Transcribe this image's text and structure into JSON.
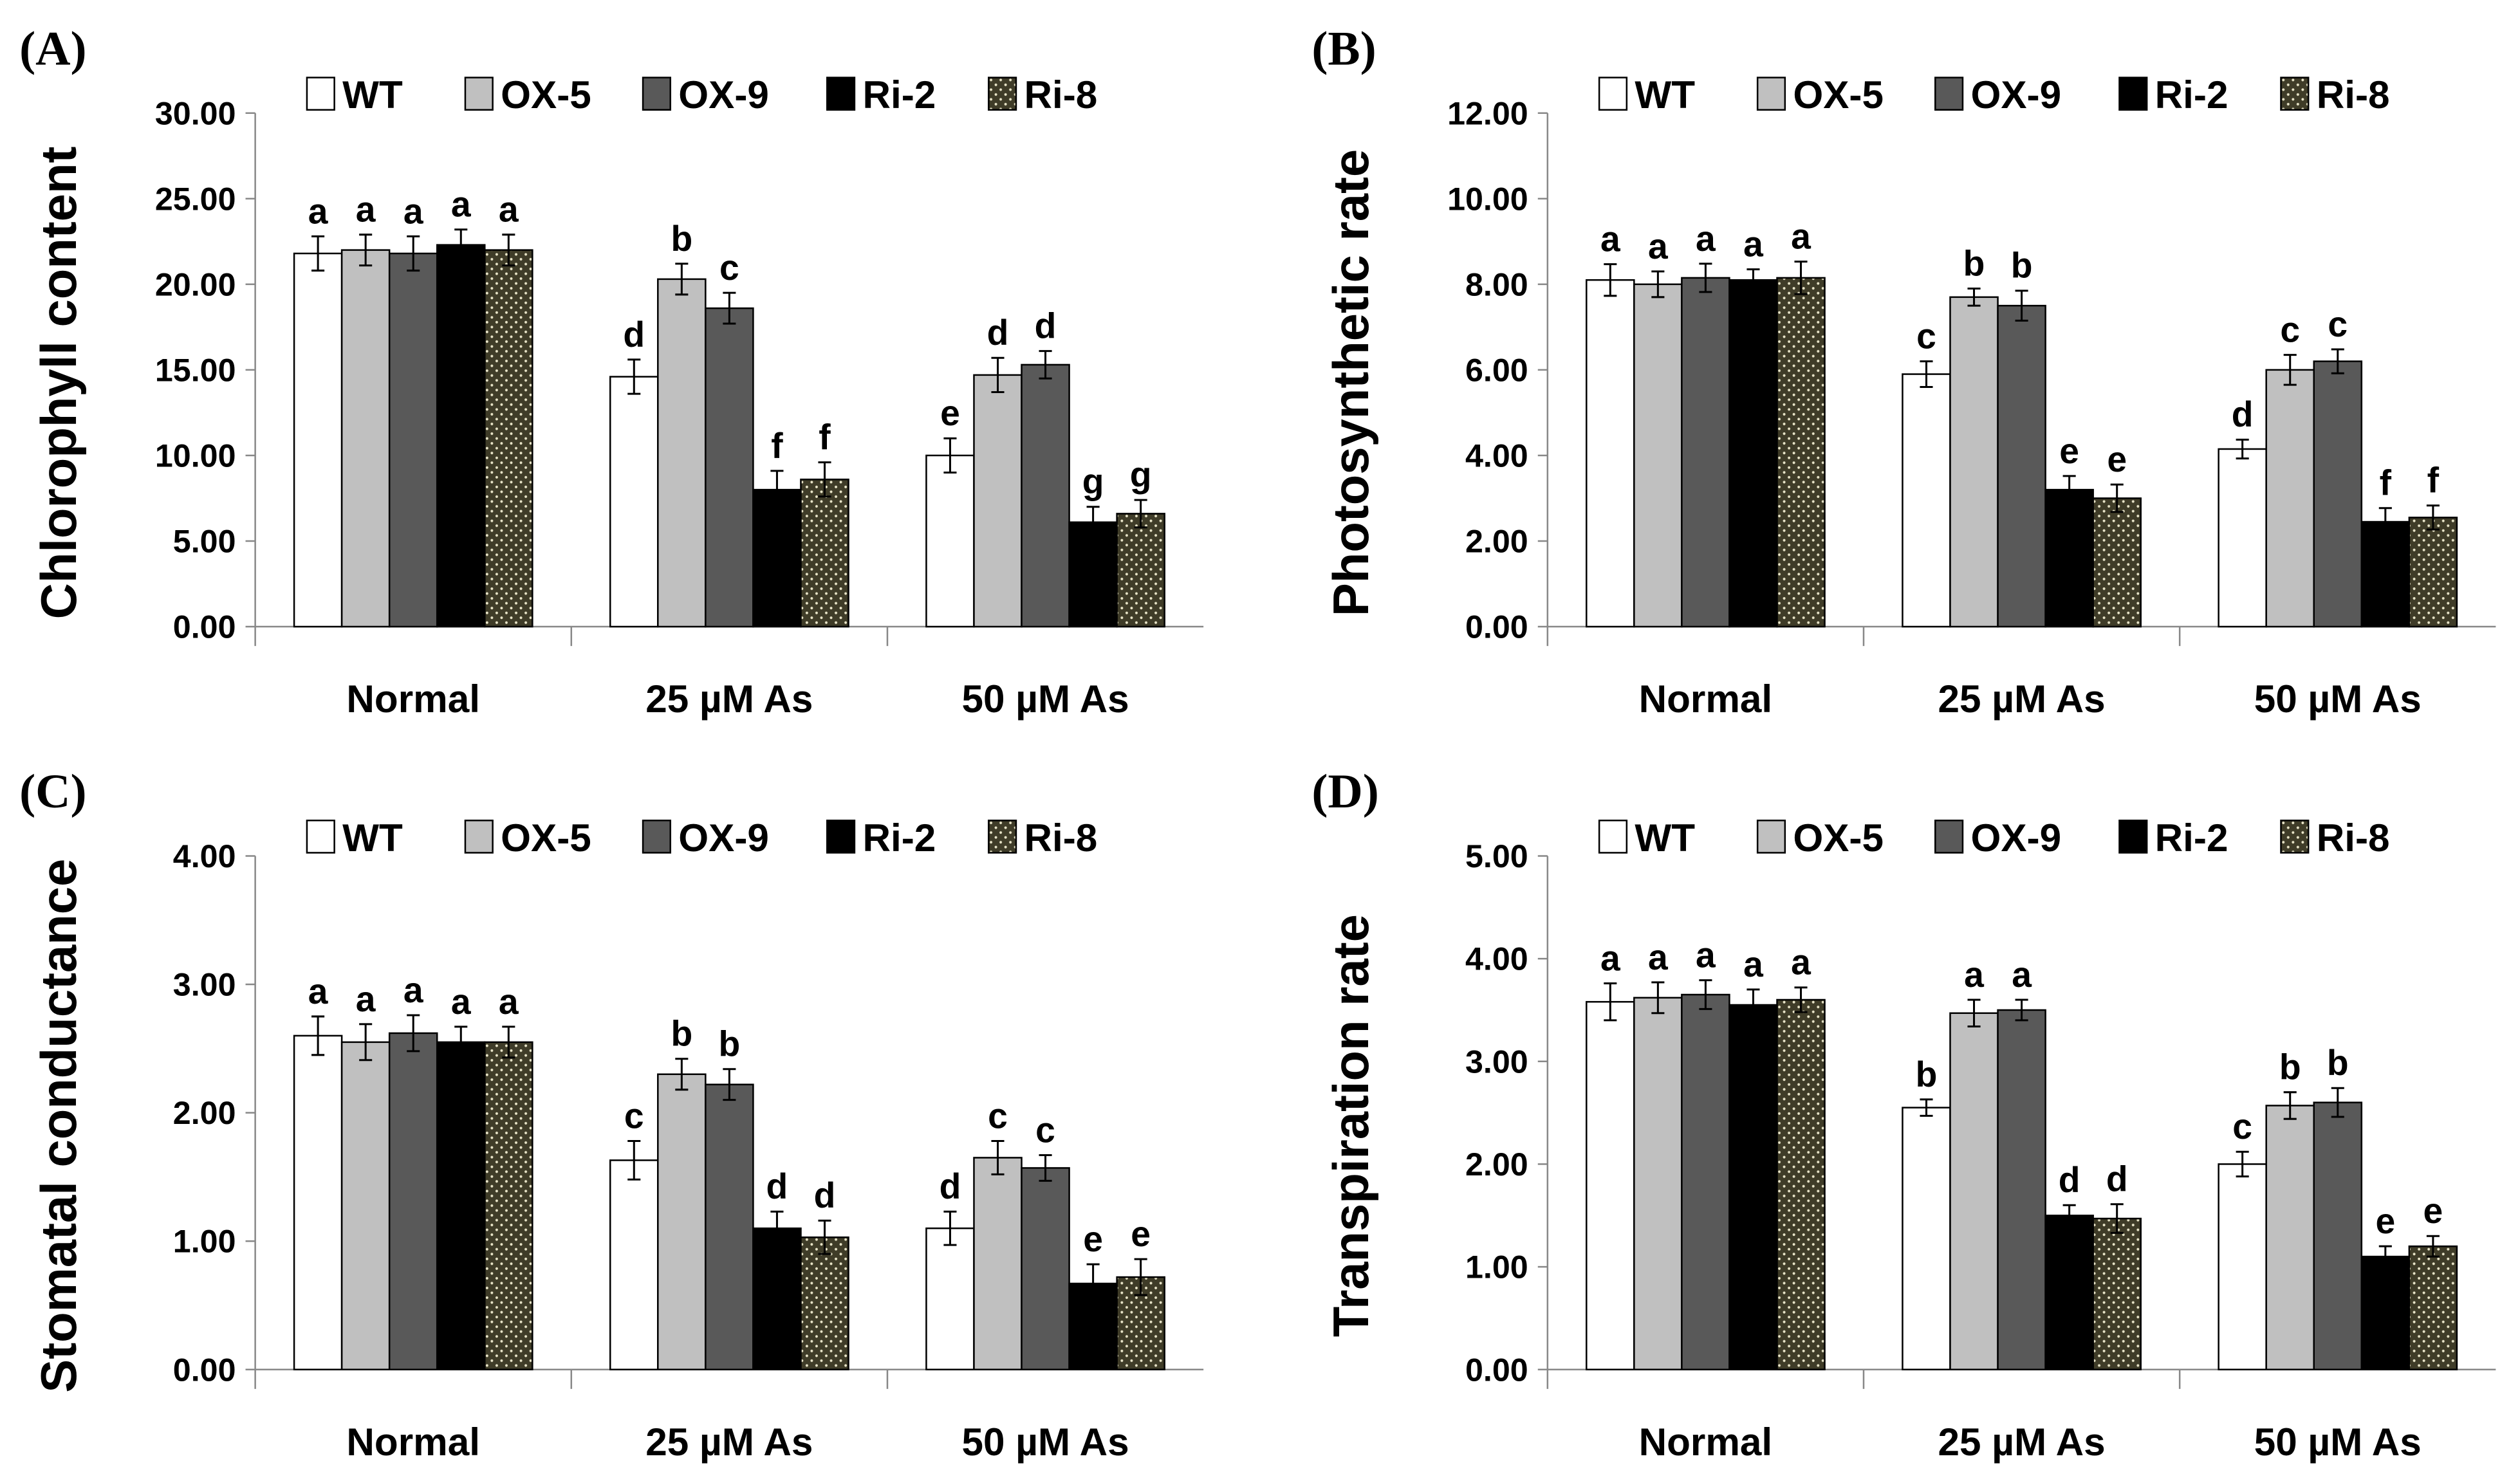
{
  "colors": {
    "WT": "#ffffff",
    "OX-5": "#c0c0c0",
    "OX-9": "#595959",
    "Ri-2": "#000000",
    "Ri-8": "#3f3c28"
  },
  "chart_data": [
    {
      "type": "bar",
      "panel": "(A)",
      "ylabel": "Chlorophyll content",
      "ylim": [
        0,
        30
      ],
      "yticks": [
        "0.00",
        "5.00",
        "10.00",
        "15.00",
        "20.00",
        "25.00",
        "30.00"
      ],
      "categories": [
        "Normal",
        "25 µM As",
        "50 µM As"
      ],
      "legend": [
        "WT",
        "OX-5",
        "OX-9",
        "Ri-2",
        "Ri-8"
      ],
      "legend_position": "top",
      "series": [
        {
          "name": "WT",
          "values": [
            21.8,
            14.6,
            10.0
          ],
          "errors": [
            1.0,
            1.0,
            1.0
          ],
          "letters": [
            "a",
            "d",
            "e"
          ]
        },
        {
          "name": "OX-5",
          "values": [
            22.0,
            20.3,
            14.7
          ],
          "errors": [
            0.9,
            0.9,
            1.0
          ],
          "letters": [
            "a",
            "b",
            "d"
          ]
        },
        {
          "name": "OX-9",
          "values": [
            21.8,
            18.6,
            15.3
          ],
          "errors": [
            1.0,
            0.9,
            0.8
          ],
          "letters": [
            "a",
            "c",
            "d"
          ]
        },
        {
          "name": "Ri-2",
          "values": [
            22.3,
            8.0,
            6.1
          ],
          "errors": [
            0.9,
            1.1,
            0.9
          ],
          "letters": [
            "a",
            "f",
            "g"
          ]
        },
        {
          "name": "Ri-8",
          "values": [
            22.0,
            8.6,
            6.6
          ],
          "errors": [
            0.9,
            1.0,
            0.8
          ],
          "letters": [
            "a",
            "f",
            "g"
          ]
        }
      ]
    },
    {
      "type": "bar",
      "panel": "(B)",
      "ylabel": "Photosynthetic rate",
      "ylim": [
        0,
        12
      ],
      "yticks": [
        "0.00",
        "2.00",
        "4.00",
        "6.00",
        "8.00",
        "10.00",
        "12.00"
      ],
      "categories": [
        "Normal",
        "25 µM As",
        "50 µM As"
      ],
      "legend": [
        "WT",
        "OX-5",
        "OX-9",
        "Ri-2",
        "Ri-8"
      ],
      "legend_position": "top",
      "series": [
        {
          "name": "WT",
          "values": [
            8.1,
            5.9,
            4.15
          ],
          "errors": [
            0.37,
            0.3,
            0.22
          ],
          "letters": [
            "a",
            "c",
            "d"
          ]
        },
        {
          "name": "OX-5",
          "values": [
            8.0,
            7.7,
            6.0
          ],
          "errors": [
            0.3,
            0.2,
            0.35
          ],
          "letters": [
            "a",
            "b",
            "c"
          ]
        },
        {
          "name": "OX-9",
          "values": [
            8.15,
            7.5,
            6.2
          ],
          "errors": [
            0.33,
            0.35,
            0.28
          ],
          "letters": [
            "a",
            "b",
            "c"
          ]
        },
        {
          "name": "Ri-2",
          "values": [
            8.1,
            3.2,
            2.45
          ],
          "errors": [
            0.25,
            0.32,
            0.32
          ],
          "letters": [
            "a",
            "e",
            "f"
          ]
        },
        {
          "name": "Ri-8",
          "values": [
            8.15,
            3.0,
            2.55
          ],
          "errors": [
            0.38,
            0.32,
            0.28
          ],
          "letters": [
            "a",
            "e",
            "f"
          ]
        }
      ]
    },
    {
      "type": "bar",
      "panel": "(C)",
      "ylabel": "Stomatal conductance",
      "ylim": [
        0,
        4
      ],
      "yticks": [
        "0.00",
        "1.00",
        "2.00",
        "3.00",
        "4.00"
      ],
      "categories": [
        "Normal",
        "25 µM As",
        "50 µM As"
      ],
      "legend": [
        "WT",
        "OX-5",
        "OX-9",
        "Ri-2",
        "Ri-8"
      ],
      "legend_position": "top",
      "series": [
        {
          "name": "WT",
          "values": [
            2.6,
            1.63,
            1.1
          ],
          "errors": [
            0.15,
            0.15,
            0.13
          ],
          "letters": [
            "a",
            "c",
            "d"
          ]
        },
        {
          "name": "OX-5",
          "values": [
            2.55,
            2.3,
            1.65
          ],
          "errors": [
            0.14,
            0.12,
            0.13
          ],
          "letters": [
            "a",
            "b",
            "c"
          ]
        },
        {
          "name": "OX-9",
          "values": [
            2.62,
            2.22,
            1.57
          ],
          "errors": [
            0.14,
            0.12,
            0.1
          ],
          "letters": [
            "a",
            "b",
            "c"
          ]
        },
        {
          "name": "Ri-2",
          "values": [
            2.55,
            1.1,
            0.67
          ],
          "errors": [
            0.12,
            0.13,
            0.15
          ],
          "letters": [
            "a",
            "d",
            "e"
          ]
        },
        {
          "name": "Ri-8",
          "values": [
            2.55,
            1.03,
            0.72
          ],
          "errors": [
            0.12,
            0.13,
            0.14
          ],
          "letters": [
            "a",
            "d",
            "e"
          ]
        }
      ]
    },
    {
      "type": "bar",
      "panel": "(D)",
      "ylabel": "Transpiration rate",
      "ylim": [
        0,
        5
      ],
      "yticks": [
        "0.00",
        "1.00",
        "2.00",
        "3.00",
        "4.00",
        "5.00"
      ],
      "categories": [
        "Normal",
        "25 µM As",
        "50 µM As"
      ],
      "legend": [
        "WT",
        "OX-5",
        "OX-9",
        "Ri-2",
        "Ri-8"
      ],
      "legend_position": "top",
      "series": [
        {
          "name": "WT",
          "values": [
            3.58,
            2.55,
            2.0
          ],
          "errors": [
            0.18,
            0.08,
            0.12
          ],
          "letters": [
            "a",
            "b",
            "c"
          ]
        },
        {
          "name": "OX-5",
          "values": [
            3.62,
            3.47,
            2.57
          ],
          "errors": [
            0.15,
            0.13,
            0.13
          ],
          "letters": [
            "a",
            "a",
            "b"
          ]
        },
        {
          "name": "OX-9",
          "values": [
            3.65,
            3.5,
            2.6
          ],
          "errors": [
            0.14,
            0.1,
            0.14
          ],
          "letters": [
            "a",
            "a",
            "b"
          ]
        },
        {
          "name": "Ri-2",
          "values": [
            3.55,
            1.5,
            1.1
          ],
          "errors": [
            0.15,
            0.1,
            0.1
          ],
          "letters": [
            "a",
            "d",
            "e"
          ]
        },
        {
          "name": "Ri-8",
          "values": [
            3.6,
            1.47,
            1.2
          ],
          "errors": [
            0.12,
            0.14,
            0.1
          ],
          "letters": [
            "a",
            "d",
            "e"
          ]
        }
      ]
    }
  ]
}
